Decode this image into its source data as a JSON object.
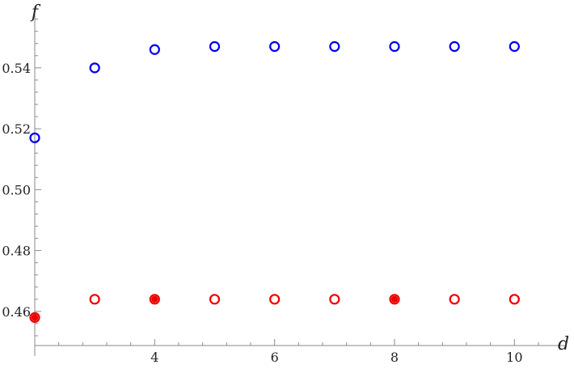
{
  "chart_data": {
    "type": "scatter",
    "xlabel": "d",
    "ylabel": "f",
    "xlim": [
      2,
      10.4
    ],
    "ylim": [
      0.4488,
      0.5575
    ],
    "x_ticks": [
      4,
      6,
      8,
      10
    ],
    "x_tick_labels": [
      "4",
      "6",
      "8",
      "10"
    ],
    "y_ticks": [
      0.46,
      0.48,
      0.5,
      0.52,
      0.54
    ],
    "y_tick_labels": [
      "0.46",
      "0.48",
      "0.50",
      "0.52",
      "0.54"
    ],
    "x_minor_step": 0.4,
    "y_minor_step": 0.004,
    "grid": false,
    "legend": "none",
    "series": [
      {
        "color": "#0000ee",
        "marker": "open-circle",
        "points": [
          {
            "x": 2,
            "y": 0.517
          },
          {
            "x": 3,
            "y": 0.54
          },
          {
            "x": 4,
            "y": 0.546
          },
          {
            "x": 5,
            "y": 0.547
          },
          {
            "x": 6,
            "y": 0.547
          },
          {
            "x": 7,
            "y": 0.547
          },
          {
            "x": 8,
            "y": 0.547
          },
          {
            "x": 9,
            "y": 0.547
          },
          {
            "x": 10,
            "y": 0.547
          }
        ]
      },
      {
        "color": "#ee0000",
        "marker": "open-circle",
        "points": [
          {
            "x": 2,
            "y": 0.458
          },
          {
            "x": 3,
            "y": 0.464
          },
          {
            "x": 4,
            "y": 0.464
          },
          {
            "x": 5,
            "y": 0.464
          },
          {
            "x": 6,
            "y": 0.464
          },
          {
            "x": 7,
            "y": 0.464
          },
          {
            "x": 8,
            "y": 0.464
          },
          {
            "x": 9,
            "y": 0.464
          },
          {
            "x": 10,
            "y": 0.464
          }
        ]
      },
      {
        "color": "#ee0000",
        "marker": "filled-circle",
        "points": [
          {
            "x": 2,
            "y": 0.458
          },
          {
            "x": 4,
            "y": 0.464
          },
          {
            "x": 8,
            "y": 0.464
          }
        ]
      }
    ]
  }
}
